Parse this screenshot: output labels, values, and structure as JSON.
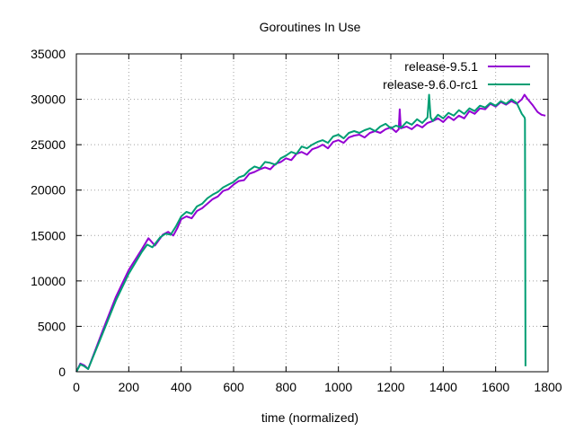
{
  "chart_data": {
    "type": "line",
    "title": "Goroutines In Use",
    "xlabel": "time (normalized)",
    "ylabel": "",
    "xlim": [
      0,
      1800
    ],
    "ylim": [
      0,
      35000
    ],
    "xticks": [
      0,
      200,
      400,
      600,
      800,
      1000,
      1200,
      1400,
      1600,
      1800
    ],
    "yticks": [
      0,
      5000,
      10000,
      15000,
      20000,
      25000,
      30000,
      35000
    ],
    "grid": true,
    "legend_position": "top-right",
    "series": [
      {
        "name": "release-9.5.1",
        "color": "#9400d3",
        "points": [
          [
            0,
            0
          ],
          [
            15,
            900
          ],
          [
            30,
            700
          ],
          [
            45,
            300
          ],
          [
            100,
            4500
          ],
          [
            150,
            8200
          ],
          [
            200,
            11200
          ],
          [
            250,
            13500
          ],
          [
            275,
            14700
          ],
          [
            300,
            13900
          ],
          [
            330,
            15100
          ],
          [
            350,
            15400
          ],
          [
            370,
            15000
          ],
          [
            385,
            15800
          ],
          [
            400,
            16800
          ],
          [
            420,
            17100
          ],
          [
            440,
            16900
          ],
          [
            460,
            17700
          ],
          [
            480,
            18000
          ],
          [
            500,
            18500
          ],
          [
            520,
            19000
          ],
          [
            540,
            19300
          ],
          [
            560,
            19900
          ],
          [
            580,
            20100
          ],
          [
            600,
            20600
          ],
          [
            620,
            21000
          ],
          [
            640,
            21100
          ],
          [
            660,
            21800
          ],
          [
            680,
            22000
          ],
          [
            700,
            22300
          ],
          [
            720,
            22500
          ],
          [
            740,
            22300
          ],
          [
            760,
            22900
          ],
          [
            780,
            23100
          ],
          [
            800,
            23500
          ],
          [
            820,
            23300
          ],
          [
            840,
            24000
          ],
          [
            860,
            24200
          ],
          [
            880,
            23900
          ],
          [
            900,
            24500
          ],
          [
            920,
            24700
          ],
          [
            940,
            25000
          ],
          [
            960,
            24600
          ],
          [
            980,
            25300
          ],
          [
            1000,
            25500
          ],
          [
            1020,
            25200
          ],
          [
            1040,
            25800
          ],
          [
            1060,
            26000
          ],
          [
            1080,
            26100
          ],
          [
            1100,
            25800
          ],
          [
            1120,
            26300
          ],
          [
            1140,
            26500
          ],
          [
            1160,
            26300
          ],
          [
            1180,
            26700
          ],
          [
            1200,
            26900
          ],
          [
            1220,
            26400
          ],
          [
            1230,
            26700
          ],
          [
            1234,
            28900
          ],
          [
            1238,
            26800
          ],
          [
            1260,
            27000
          ],
          [
            1280,
            26700
          ],
          [
            1300,
            27200
          ],
          [
            1320,
            26900
          ],
          [
            1340,
            27400
          ],
          [
            1360,
            27600
          ],
          [
            1380,
            27900
          ],
          [
            1400,
            27500
          ],
          [
            1420,
            28100
          ],
          [
            1440,
            27700
          ],
          [
            1460,
            28200
          ],
          [
            1480,
            27900
          ],
          [
            1500,
            28700
          ],
          [
            1520,
            28400
          ],
          [
            1540,
            29000
          ],
          [
            1560,
            28900
          ],
          [
            1580,
            29500
          ],
          [
            1600,
            29200
          ],
          [
            1620,
            29700
          ],
          [
            1640,
            29400
          ],
          [
            1660,
            29800
          ],
          [
            1680,
            29500
          ],
          [
            1700,
            30000
          ],
          [
            1710,
            30500
          ],
          [
            1720,
            30100
          ],
          [
            1740,
            29400
          ],
          [
            1760,
            28600
          ],
          [
            1775,
            28300
          ],
          [
            1790,
            28200
          ]
        ]
      },
      {
        "name": "release-9.6.0-rc1",
        "color": "#009e73",
        "points": [
          [
            0,
            0
          ],
          [
            15,
            800
          ],
          [
            30,
            600
          ],
          [
            45,
            300
          ],
          [
            100,
            4200
          ],
          [
            150,
            7800
          ],
          [
            200,
            10800
          ],
          [
            250,
            13200
          ],
          [
            270,
            14000
          ],
          [
            290,
            13700
          ],
          [
            320,
            14800
          ],
          [
            340,
            15200
          ],
          [
            360,
            15100
          ],
          [
            380,
            16000
          ],
          [
            400,
            17100
          ],
          [
            420,
            17600
          ],
          [
            440,
            17400
          ],
          [
            460,
            18200
          ],
          [
            480,
            18500
          ],
          [
            500,
            19100
          ],
          [
            520,
            19500
          ],
          [
            540,
            19800
          ],
          [
            560,
            20300
          ],
          [
            580,
            20600
          ],
          [
            600,
            20900
          ],
          [
            620,
            21400
          ],
          [
            640,
            21600
          ],
          [
            660,
            22200
          ],
          [
            680,
            22600
          ],
          [
            700,
            22400
          ],
          [
            720,
            23100
          ],
          [
            740,
            23000
          ],
          [
            760,
            22800
          ],
          [
            780,
            23500
          ],
          [
            800,
            23800
          ],
          [
            820,
            24200
          ],
          [
            840,
            24000
          ],
          [
            860,
            24800
          ],
          [
            880,
            24600
          ],
          [
            900,
            25000
          ],
          [
            920,
            25300
          ],
          [
            940,
            25500
          ],
          [
            960,
            25200
          ],
          [
            980,
            25900
          ],
          [
            1000,
            26100
          ],
          [
            1020,
            25700
          ],
          [
            1040,
            26300
          ],
          [
            1060,
            26500
          ],
          [
            1080,
            26300
          ],
          [
            1100,
            26600
          ],
          [
            1120,
            26800
          ],
          [
            1140,
            26500
          ],
          [
            1160,
            27000
          ],
          [
            1180,
            27300
          ],
          [
            1200,
            26800
          ],
          [
            1220,
            27100
          ],
          [
            1240,
            26900
          ],
          [
            1260,
            27500
          ],
          [
            1280,
            27200
          ],
          [
            1300,
            27800
          ],
          [
            1320,
            27400
          ],
          [
            1340,
            28000
          ],
          [
            1346,
            30500
          ],
          [
            1352,
            28000
          ],
          [
            1360,
            27600
          ],
          [
            1380,
            28300
          ],
          [
            1400,
            27900
          ],
          [
            1420,
            28500
          ],
          [
            1440,
            28200
          ],
          [
            1460,
            28800
          ],
          [
            1480,
            28400
          ],
          [
            1500,
            29000
          ],
          [
            1520,
            28700
          ],
          [
            1540,
            29300
          ],
          [
            1560,
            29100
          ],
          [
            1580,
            29600
          ],
          [
            1600,
            29300
          ],
          [
            1620,
            29800
          ],
          [
            1640,
            29500
          ],
          [
            1660,
            30000
          ],
          [
            1680,
            29600
          ],
          [
            1690,
            29000
          ],
          [
            1700,
            28400
          ],
          [
            1710,
            28000
          ],
          [
            1712,
            27800
          ],
          [
            1714,
            600
          ]
        ]
      }
    ]
  }
}
